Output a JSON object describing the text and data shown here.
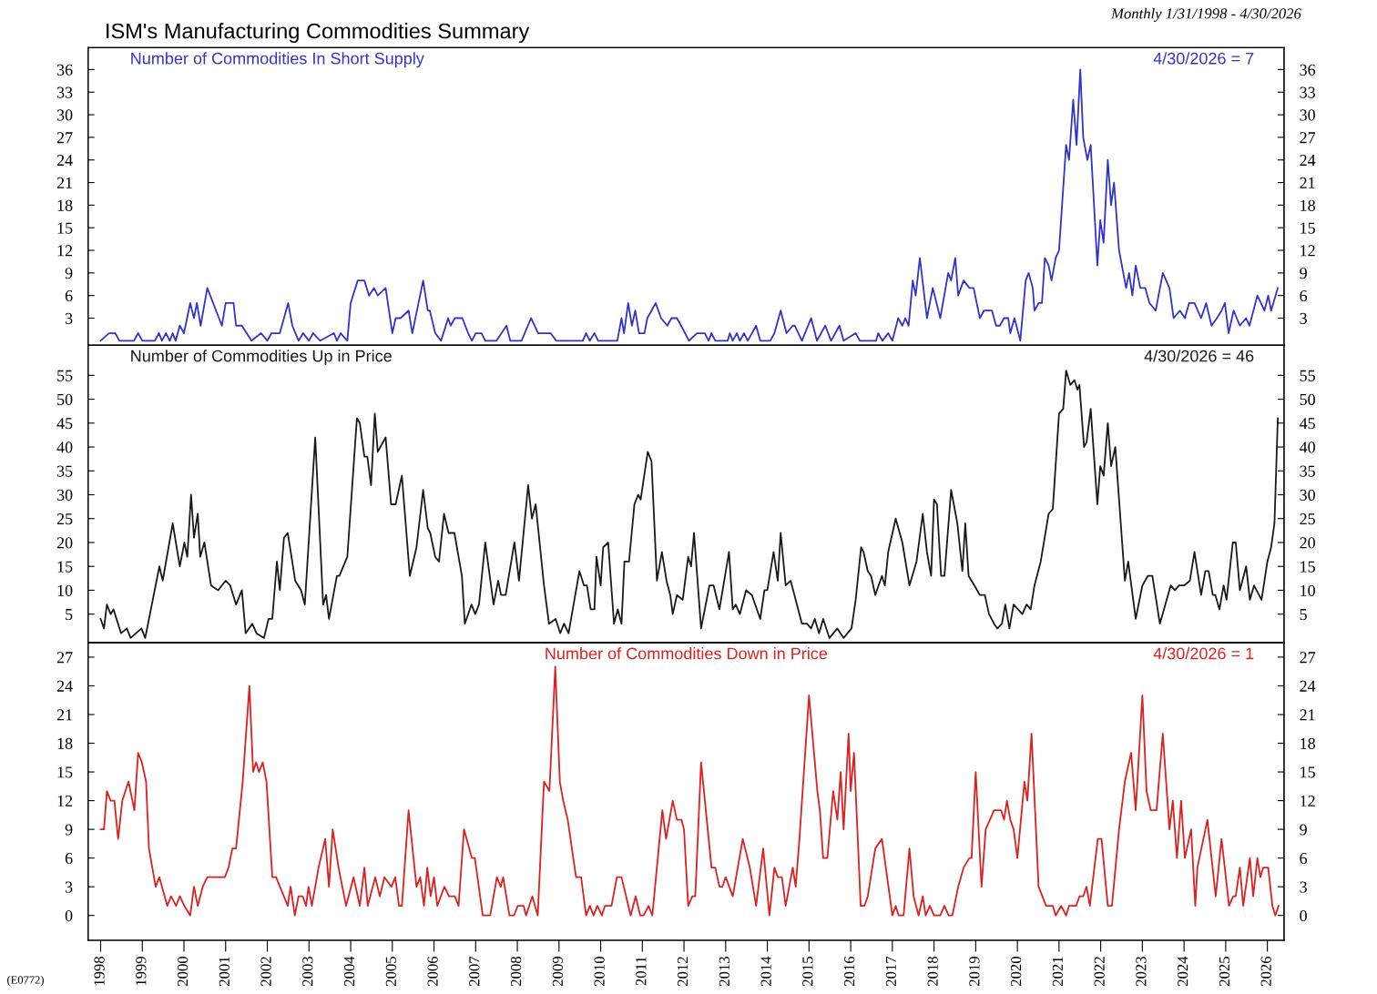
{
  "chart_data": [
    {
      "type": "line",
      "title": "ISM's Manufacturing Commodities Summary",
      "subtitle": "Monthly 1/31/1998 - 4/30/2026",
      "xlim": [
        1997.7,
        2026.4
      ],
      "xticks": [
        1998,
        1999,
        2000,
        2001,
        2002,
        2003,
        2004,
        2005,
        2006,
        2007,
        2008,
        2009,
        2010,
        2011,
        2012,
        2013,
        2014,
        2015,
        2016,
        2017,
        2018,
        2019,
        2020,
        2021,
        2022,
        2023,
        2024,
        2025,
        2026
      ],
      "ylim": [
        -0.6,
        38.9
      ],
      "yticks": [
        3,
        6,
        9,
        12,
        15,
        18,
        21,
        24,
        27,
        30,
        33,
        36
      ],
      "y2lim": [
        -0.6,
        38.9
      ],
      "y2ticks": [
        3,
        6,
        9,
        12,
        15,
        18,
        21,
        24,
        27,
        30,
        33,
        36
      ],
      "tick_labels": "y",
      "annotations": [
        "4/30/2026 = 7"
      ],
      "series": [
        {
          "name": "Number of Commodities In Short Supply",
          "color": "#3333cc",
          "x": [
            1998.0,
            1998.2,
            1998.35,
            1998.45,
            1998.8,
            1998.9,
            1999.0,
            1999.3,
            1999.4,
            1999.47,
            1999.57,
            1999.66,
            1999.73,
            1999.8,
            1999.9,
            2000.0,
            2000.15,
            2000.24,
            2000.31,
            2000.4,
            2000.56,
            2000.91,
            2001.0,
            2001.19,
            2001.25,
            2001.39,
            2001.62,
            2001.85,
            2002.0,
            2002.1,
            2002.3,
            2002.5,
            2002.6,
            2002.75,
            2002.86,
            2003.0,
            2003.1,
            2003.27,
            2003.6,
            2003.67,
            2003.76,
            2003.92,
            2004.0,
            2004.17,
            2004.33,
            2004.44,
            2004.56,
            2004.65,
            2004.84,
            2005.0,
            2005.08,
            2005.2,
            2005.39,
            2005.48,
            2005.74,
            2005.85,
            2005.9,
            2006.03,
            2006.17,
            2006.34,
            2006.4,
            2006.5,
            2006.68,
            2006.82,
            2006.91,
            2007.0,
            2007.14,
            2007.23,
            2007.5,
            2007.74,
            2007.83,
            2008.1,
            2008.33,
            2008.5,
            2008.8,
            2008.93,
            2009.57,
            2009.65,
            2009.74,
            2009.85,
            2009.94,
            2010.4,
            2010.5,
            2010.56,
            2010.66,
            2010.75,
            2010.83,
            2010.92,
            2011.05,
            2011.12,
            2011.32,
            2011.45,
            2011.6,
            2011.7,
            2011.83,
            2011.93,
            2012.12,
            2012.31,
            2012.5,
            2012.59,
            2012.66,
            2012.75,
            2013.05,
            2013.1,
            2013.17,
            2013.27,
            2013.34,
            2013.44,
            2013.53,
            2013.73,
            2013.83,
            2014.07,
            2014.17,
            2014.32,
            2014.46,
            2014.61,
            2014.66,
            2014.83,
            2015.05,
            2015.19,
            2015.39,
            2015.53,
            2015.73,
            2015.83,
            2016.12,
            2016.22,
            2016.61,
            2016.66,
            2016.76,
            2016.9,
            2017.0,
            2017.14,
            2017.24,
            2017.31,
            2017.39,
            2017.49,
            2017.56,
            2017.66,
            2017.83,
            2017.97,
            2018.15,
            2018.34,
            2018.41,
            2018.51,
            2018.58,
            2018.71,
            2018.85,
            2018.95,
            2019.1,
            2019.2,
            2019.29,
            2019.39,
            2019.49,
            2019.58,
            2019.68,
            2019.78,
            2019.83,
            2019.93,
            2020.07,
            2020.2,
            2020.27,
            2020.37,
            2020.41,
            2020.51,
            2020.59,
            2020.66,
            2020.75,
            2020.82,
            2020.92,
            2021.0,
            2021.17,
            2021.24,
            2021.34,
            2021.42,
            2021.51,
            2021.58,
            2021.68,
            2021.76,
            2021.92,
            2021.99,
            2022.07,
            2022.17,
            2022.25,
            2022.32,
            2022.44,
            2022.61,
            2022.68,
            2022.76,
            2022.84,
            2022.95,
            2023.07,
            2023.17,
            2023.32,
            2023.49,
            2023.65,
            2023.75,
            2023.9,
            2024.02,
            2024.12,
            2024.25,
            2024.41,
            2024.53,
            2024.66,
            2024.79,
            2024.9,
            2024.98,
            2025.07,
            2025.19,
            2025.34,
            2025.49,
            2025.57,
            2025.76,
            2025.93,
            2026.02,
            2026.09,
            2026.25
          ],
          "values": [
            0,
            1,
            1,
            0,
            0,
            1,
            0,
            0,
            1,
            0,
            1,
            0,
            1,
            0,
            2,
            1,
            5,
            3,
            5,
            2,
            7,
            2,
            5,
            5,
            2,
            2,
            0,
            1,
            0,
            1,
            1,
            5,
            2,
            0,
            1,
            0,
            1,
            0,
            1,
            0,
            1,
            0,
            5,
            8,
            8,
            6,
            7,
            6,
            7,
            1,
            3,
            3,
            4,
            1,
            8,
            4,
            4,
            1,
            0,
            3,
            2,
            3,
            3,
            1,
            0,
            1,
            1,
            0,
            0,
            2,
            0,
            0,
            3,
            1,
            1,
            0,
            0,
            1,
            0,
            1,
            0,
            0,
            3,
            1,
            5,
            2,
            4,
            1,
            1,
            3,
            5,
            3,
            2,
            3,
            3,
            2,
            0,
            1,
            1,
            0,
            1,
            0,
            0,
            1,
            0,
            1,
            0,
            1,
            0,
            2,
            0,
            0,
            1,
            4,
            1,
            2,
            2,
            0,
            3,
            0,
            2,
            0,
            2,
            0,
            1,
            0,
            0,
            1,
            0,
            1,
            0,
            3,
            2,
            3,
            2,
            8,
            6,
            11,
            3,
            7,
            3,
            9,
            8,
            11,
            6,
            8,
            7,
            7,
            3,
            4,
            4,
            4,
            2,
            2,
            3,
            3,
            1,
            3,
            0,
            8,
            9,
            7,
            4,
            5,
            5,
            11,
            10,
            8,
            11,
            12,
            26,
            24,
            32,
            26,
            36,
            27,
            24,
            26,
            10,
            16,
            13,
            24,
            18,
            21,
            12,
            7,
            9,
            6,
            10,
            7,
            7,
            5,
            4,
            9,
            7,
            3,
            4,
            3,
            5,
            5,
            3,
            5,
            2,
            3,
            4,
            5,
            1,
            4,
            2,
            3,
            2,
            6,
            4,
            6,
            4,
            7
          ]
        }
      ]
    },
    {
      "type": "line",
      "xlim": [
        1997.7,
        2026.4
      ],
      "xticks": [
        1998,
        1999,
        2000,
        2001,
        2002,
        2003,
        2004,
        2005,
        2006,
        2007,
        2008,
        2009,
        2010,
        2011,
        2012,
        2013,
        2014,
        2015,
        2016,
        2017,
        2018,
        2019,
        2020,
        2021,
        2022,
        2023,
        2024,
        2025,
        2026
      ],
      "ylim": [
        -1,
        61.3
      ],
      "yticks": [
        5,
        10,
        15,
        20,
        25,
        30,
        35,
        40,
        45,
        50,
        55
      ],
      "y2lim": [
        -1,
        61.3
      ],
      "y2ticks": [
        5,
        10,
        15,
        20,
        25,
        30,
        35,
        40,
        45,
        50,
        55
      ],
      "tick_labels": "y",
      "annotations": [
        "4/30/2026 = 46"
      ],
      "series": [
        {
          "name": "Number of Commodities Up in Price",
          "color": "#1a1a1a",
          "x": [
            1998.0,
            1998.08,
            1998.15,
            1998.24,
            1998.31,
            1998.49,
            1998.63,
            1998.72,
            1998.98,
            1999.07,
            1999.41,
            1999.49,
            1999.73,
            1999.9,
            2000.01,
            2000.08,
            2000.17,
            2000.24,
            2000.33,
            2000.39,
            2000.49,
            2000.65,
            2000.82,
            2001.0,
            2001.11,
            2001.25,
            2001.39,
            2001.48,
            2001.64,
            2001.74,
            2001.92,
            2002.03,
            2002.12,
            2002.23,
            2002.3,
            2002.4,
            2002.49,
            2002.67,
            2002.81,
            2002.9,
            2003.15,
            2003.34,
            2003.41,
            2003.48,
            2003.67,
            2003.73,
            2003.92,
            2004.15,
            2004.22,
            2004.33,
            2004.4,
            2004.49,
            2004.58,
            2004.65,
            2004.84,
            2004.97,
            2005.08,
            2005.23,
            2005.42,
            2005.58,
            2005.74,
            2005.85,
            2005.91,
            2006.03,
            2006.12,
            2006.24,
            2006.35,
            2006.49,
            2006.67,
            2006.74,
            2006.9,
            2006.99,
            2007.08,
            2007.23,
            2007.43,
            2007.54,
            2007.61,
            2007.72,
            2007.93,
            2008.04,
            2008.26,
            2008.35,
            2008.44,
            2008.64,
            2008.76,
            2008.92,
            2009.03,
            2009.12,
            2009.23,
            2009.49,
            2009.6,
            2009.67,
            2009.76,
            2009.85,
            2009.9,
            2010.0,
            2010.06,
            2010.18,
            2010.32,
            2010.41,
            2010.5,
            2010.57,
            2010.68,
            2010.81,
            2010.9,
            2010.96,
            2011.13,
            2011.22,
            2011.35,
            2011.47,
            2011.58,
            2011.67,
            2011.73,
            2011.83,
            2011.97,
            2012.1,
            2012.17,
            2012.24,
            2012.41,
            2012.61,
            2012.71,
            2012.85,
            2013.08,
            2013.17,
            2013.24,
            2013.34,
            2013.49,
            2013.63,
            2013.83,
            2013.93,
            2014.0,
            2014.15,
            2014.25,
            2014.32,
            2014.44,
            2014.56,
            2014.83,
            2014.95,
            2015.05,
            2015.14,
            2015.24,
            2015.34,
            2015.49,
            2015.68,
            2015.83,
            2016.02,
            2016.12,
            2016.25,
            2016.31,
            2016.41,
            2016.49,
            2016.59,
            2016.75,
            2016.82,
            2016.9,
            2017.08,
            2017.24,
            2017.41,
            2017.58,
            2017.73,
            2017.83,
            2017.93,
            2018.0,
            2018.07,
            2018.17,
            2018.25,
            2018.41,
            2018.56,
            2018.68,
            2018.75,
            2018.83,
            2018.97,
            2019.1,
            2019.22,
            2019.32,
            2019.44,
            2019.52,
            2019.63,
            2019.71,
            2019.81,
            2019.91,
            2020.12,
            2020.22,
            2020.32,
            2020.41,
            2020.56,
            2020.75,
            2020.85,
            2021.0,
            2021.1,
            2021.17,
            2021.27,
            2021.37,
            2021.44,
            2021.49,
            2021.6,
            2021.66,
            2021.76,
            2021.92,
            2021.99,
            2022.07,
            2022.17,
            2022.25,
            2022.35,
            2022.58,
            2022.66,
            2022.84,
            2023.0,
            2023.13,
            2023.24,
            2023.42,
            2023.55,
            2023.68,
            2023.78,
            2023.88,
            2024.0,
            2024.14,
            2024.25,
            2024.41,
            2024.51,
            2024.59,
            2024.69,
            2024.75,
            2024.85,
            2024.95,
            2025.02,
            2025.17,
            2025.24,
            2025.34,
            2025.49,
            2025.58,
            2025.68,
            2025.86,
            2026.0,
            2026.09,
            2026.17,
            2026.25
          ],
          "values": [
            4,
            2,
            7,
            5,
            6,
            1,
            2,
            0,
            2,
            0,
            15,
            12,
            24,
            15,
            20,
            17,
            30,
            21,
            26,
            17,
            20,
            11,
            10,
            12,
            11,
            7,
            10,
            1,
            3,
            1,
            0,
            4,
            4,
            16,
            10,
            21,
            22,
            12,
            10,
            7,
            42,
            7,
            9,
            4,
            13,
            13,
            17,
            46,
            45,
            38,
            38,
            32,
            47,
            39,
            42,
            28,
            28,
            34,
            13,
            19,
            31,
            23,
            22,
            17,
            16,
            26,
            22,
            22,
            13,
            3,
            7,
            5,
            7,
            20,
            7,
            12,
            9,
            9,
            20,
            12,
            32,
            25,
            28,
            11,
            3,
            4,
            1,
            3,
            1,
            14,
            11,
            11,
            6,
            6,
            17,
            11,
            19,
            20,
            3,
            6,
            3,
            16,
            16,
            28,
            30,
            29,
            39,
            37,
            12,
            18,
            12,
            9,
            5,
            9,
            8,
            17,
            15,
            22,
            2,
            11,
            11,
            6,
            18,
            6,
            7,
            5,
            10,
            9,
            4,
            10,
            10,
            18,
            12,
            22,
            11,
            12,
            3,
            3,
            2,
            4,
            1,
            4,
            0,
            2,
            0,
            2,
            8,
            19,
            18,
            14,
            13,
            9,
            13,
            11,
            18,
            25,
            20,
            11,
            16,
            26,
            18,
            13,
            29,
            28,
            13,
            13,
            31,
            24,
            14,
            24,
            13,
            11,
            9,
            9,
            5,
            3,
            2,
            3,
            7,
            2,
            7,
            5,
            7,
            6,
            11,
            16,
            26,
            27,
            47,
            48,
            56,
            53,
            54,
            52,
            53,
            40,
            41,
            48,
            28,
            36,
            34,
            45,
            36,
            40,
            12,
            16,
            4,
            11,
            13,
            13,
            3,
            7,
            11,
            10,
            11,
            11,
            12,
            18,
            9,
            14,
            14,
            9,
            9,
            6,
            11,
            8,
            20,
            20,
            10,
            15,
            8,
            11,
            8,
            16,
            19,
            24,
            46
          ]
        }
      ]
    },
    {
      "type": "line",
      "xlim": [
        1997.7,
        2026.4
      ],
      "xticks": [
        1998,
        1999,
        2000,
        2001,
        2002,
        2003,
        2004,
        2005,
        2006,
        2007,
        2008,
        2009,
        2010,
        2011,
        2012,
        2013,
        2014,
        2015,
        2016,
        2017,
        2018,
        2019,
        2020,
        2021,
        2022,
        2023,
        2024,
        2025,
        2026
      ],
      "ylim": [
        -2.6,
        28.5
      ],
      "yticks": [
        0,
        3,
        6,
        9,
        12,
        15,
        18,
        21,
        24,
        27
      ],
      "y2lim": [
        -2.6,
        28.5
      ],
      "y2ticks": [
        0,
        3,
        6,
        9,
        12,
        15,
        18,
        21,
        24,
        27
      ],
      "annotations": [
        "4/30/2026 = 1",
        "(E0772)"
      ],
      "series": [
        {
          "name": "Number of Commodities Down in Price",
          "color": "#dd2020",
          "x": [
            1998.0,
            1998.08,
            1998.15,
            1998.24,
            1998.33,
            1998.42,
            1998.52,
            1998.67,
            1998.81,
            1998.9,
            1998.99,
            1999.09,
            1999.16,
            1999.32,
            1999.41,
            1999.6,
            1999.69,
            1999.81,
            1999.9,
            2000.01,
            2000.15,
            2000.24,
            2000.33,
            2000.45,
            2000.56,
            2000.98,
            2001.07,
            2001.16,
            2001.25,
            2001.41,
            2001.57,
            2001.66,
            2001.73,
            2001.8,
            2001.89,
            2001.98,
            2002.12,
            2002.21,
            2002.49,
            2002.56,
            2002.66,
            2002.75,
            2002.85,
            2002.93,
            2002.99,
            2003.07,
            2003.23,
            2003.39,
            2003.48,
            2003.57,
            2003.71,
            2003.89,
            2004.07,
            2004.22,
            2004.33,
            2004.41,
            2004.59,
            2004.7,
            2004.81,
            2004.98,
            2005.07,
            2005.16,
            2005.23,
            2005.39,
            2005.58,
            2005.67,
            2005.76,
            2005.84,
            2005.92,
            2006.0,
            2006.08,
            2006.25,
            2006.36,
            2006.5,
            2006.59,
            2006.72,
            2006.91,
            2006.98,
            2007.17,
            2007.35,
            2007.51,
            2007.6,
            2007.66,
            2007.81,
            2007.92,
            2008.01,
            2008.15,
            2008.21,
            2008.36,
            2008.49,
            2008.64,
            2008.77,
            2008.91,
            2009.02,
            2009.1,
            2009.21,
            2009.41,
            2009.53,
            2009.65,
            2009.74,
            2009.83,
            2009.92,
            2010.03,
            2010.1,
            2010.26,
            2010.39,
            2010.5,
            2010.72,
            2010.84,
            2010.95,
            2011.03,
            2011.15,
            2011.24,
            2011.48,
            2011.57,
            2011.73,
            2011.83,
            2011.94,
            2012.0,
            2012.1,
            2012.2,
            2012.27,
            2012.41,
            2012.66,
            2012.75,
            2012.85,
            2012.92,
            2013.0,
            2013.17,
            2013.41,
            2013.58,
            2013.73,
            2013.9,
            2014.05,
            2014.17,
            2014.25,
            2014.35,
            2014.44,
            2014.61,
            2014.68,
            2014.77,
            2015.0,
            2015.2,
            2015.26,
            2015.34,
            2015.44,
            2015.58,
            2015.68,
            2015.76,
            2015.83,
            2015.95,
            2016.0,
            2016.08,
            2016.24,
            2016.33,
            2016.41,
            2016.59,
            2016.75,
            2017.0,
            2017.08,
            2017.15,
            2017.27,
            2017.41,
            2017.51,
            2017.63,
            2017.73,
            2017.8,
            2017.9,
            2018.0,
            2018.15,
            2018.25,
            2018.35,
            2018.44,
            2018.58,
            2018.71,
            2018.85,
            2018.9,
            2019.0,
            2019.14,
            2019.24,
            2019.44,
            2019.61,
            2019.68,
            2019.75,
            2019.83,
            2019.91,
            2020.0,
            2020.17,
            2020.24,
            2020.34,
            2020.51,
            2020.69,
            2020.85,
            2020.92,
            2021.05,
            2021.17,
            2021.24,
            2021.41,
            2021.49,
            2021.58,
            2021.66,
            2021.74,
            2021.93,
            2022.02,
            2022.17,
            2022.27,
            2022.44,
            2022.58,
            2022.73,
            2022.84,
            2023.0,
            2023.1,
            2023.2,
            2023.34,
            2023.49,
            2023.65,
            2023.73,
            2023.83,
            2023.93,
            2024.02,
            2024.17,
            2024.27,
            2024.32,
            2024.56,
            2024.76,
            2024.9,
            2025.08,
            2025.18,
            2025.24,
            2025.34,
            2025.42,
            2025.58,
            2025.66,
            2025.76,
            2025.83,
            2025.9,
            2026.02,
            2026.12,
            2026.19,
            2026.27
          ],
          "values": [
            9,
            9,
            13,
            12,
            12,
            8,
            12,
            14,
            11,
            17,
            16,
            14,
            7,
            3,
            4,
            1,
            2,
            1,
            2,
            1,
            0,
            3,
            1,
            3,
            4,
            4,
            5,
            7,
            7,
            14,
            24,
            15,
            16,
            15,
            16,
            14,
            4,
            4,
            1,
            3,
            0,
            2,
            2,
            1,
            3,
            1,
            5,
            8,
            3,
            9,
            5,
            1,
            4,
            1,
            5,
            1,
            4,
            2,
            4,
            3,
            4,
            1,
            1,
            11,
            3,
            4,
            1,
            5,
            2,
            4,
            1,
            3,
            2,
            2,
            1,
            9,
            6,
            6,
            0,
            0,
            4,
            3,
            4,
            0,
            0,
            1,
            1,
            0,
            2,
            0,
            14,
            13,
            26,
            14,
            12,
            10,
            4,
            4,
            0,
            1,
            0,
            1,
            0,
            1,
            1,
            4,
            4,
            0,
            2,
            0,
            0,
            1,
            0,
            11,
            8,
            12,
            10,
            10,
            9,
            1,
            2,
            2,
            16,
            5,
            5,
            3,
            3,
            4,
            2,
            8,
            5,
            1,
            7,
            0,
            5,
            4,
            4,
            1,
            5,
            3,
            8,
            23,
            13,
            11,
            6,
            6,
            13,
            10,
            15,
            9,
            19,
            13,
            17,
            1,
            1,
            2,
            7,
            8,
            0,
            1,
            0,
            0,
            7,
            2,
            0,
            2,
            0,
            1,
            0,
            0,
            1,
            0,
            0,
            3,
            5,
            6,
            6,
            15,
            3,
            9,
            11,
            11,
            10,
            12,
            10,
            9,
            6,
            14,
            12,
            19,
            3,
            1,
            1,
            0,
            1,
            0,
            1,
            1,
            2,
            2,
            3,
            1,
            8,
            8,
            1,
            1,
            9,
            14,
            17,
            11,
            23,
            13,
            11,
            11,
            19,
            9,
            12,
            6,
            12,
            6,
            9,
            1,
            5,
            10,
            2,
            8,
            1,
            2,
            2,
            5,
            1,
            6,
            2,
            6,
            4,
            5,
            5,
            1,
            0,
            1
          ]
        }
      ]
    }
  ]
}
